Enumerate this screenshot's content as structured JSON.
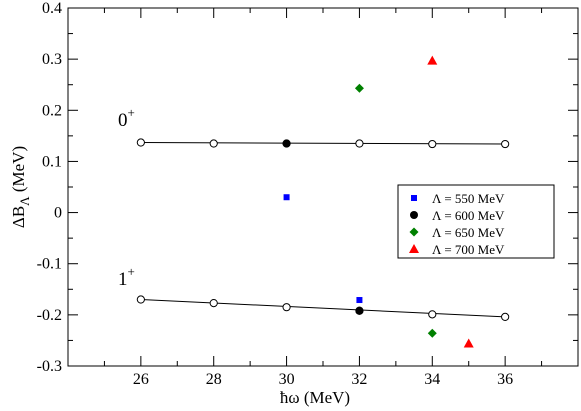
{
  "chart_data": {
    "type": "scatter",
    "xlabel": "ħω (MeV)",
    "ylabel_main": "ΔB",
    "ylabel_sub": "Λ",
    "ylabel_unit": " (MeV)",
    "xlim": [
      24,
      38
    ],
    "ylim": [
      -0.3,
      0.4
    ],
    "xticks": [
      26,
      28,
      30,
      32,
      34,
      36
    ],
    "yticks": [
      -0.3,
      -0.2,
      -0.1,
      0,
      0.1,
      0.2,
      0.3,
      0.4
    ],
    "ytick_labels": [
      "-0.3",
      "-0.2",
      "-0.1",
      "0",
      "0.1",
      "0.2",
      "0.3",
      "0.4"
    ],
    "grid": false,
    "legend_position": "center-right",
    "fit_lines": [
      {
        "label_main": "0",
        "label_sup": "+",
        "x": [
          26,
          36
        ],
        "y": [
          0.137,
          0.134
        ]
      },
      {
        "label_main": "1",
        "label_sup": "+",
        "x": [
          26,
          36
        ],
        "y": [
          -0.17,
          -0.204
        ]
      }
    ],
    "open_points": [
      {
        "x": 26,
        "y": 0.137
      },
      {
        "x": 28,
        "y": 0.135
      },
      {
        "x": 30,
        "y": 0.135
      },
      {
        "x": 32,
        "y": 0.135
      },
      {
        "x": 34,
        "y": 0.134
      },
      {
        "x": 36,
        "y": 0.134
      },
      {
        "x": 26,
        "y": -0.17
      },
      {
        "x": 28,
        "y": -0.177
      },
      {
        "x": 30,
        "y": -0.185
      },
      {
        "x": 32,
        "y": -0.192
      },
      {
        "x": 34,
        "y": -0.199
      },
      {
        "x": 36,
        "y": -0.204
      }
    ],
    "series": [
      {
        "name": "Λ = 550 MeV",
        "marker": "square",
        "color": "#0000ff",
        "points": [
          {
            "x": 30,
            "y": 0.03
          },
          {
            "x": 32,
            "y": -0.171
          }
        ]
      },
      {
        "name": "Λ = 600 MeV",
        "marker": "circle",
        "color": "#000000",
        "points": [
          {
            "x": 30,
            "y": 0.135
          },
          {
            "x": 32,
            "y": -0.192
          }
        ]
      },
      {
        "name": "Λ = 650 MeV",
        "marker": "diamond",
        "color": "#008000",
        "points": [
          {
            "x": 32,
            "y": 0.243
          },
          {
            "x": 34,
            "y": -0.236
          }
        ]
      },
      {
        "name": "Λ = 700 MeV",
        "marker": "triangle",
        "color": "#ff0000",
        "points": [
          {
            "x": 34,
            "y": 0.297
          },
          {
            "x": 35,
            "y": -0.256
          }
        ]
      }
    ]
  }
}
